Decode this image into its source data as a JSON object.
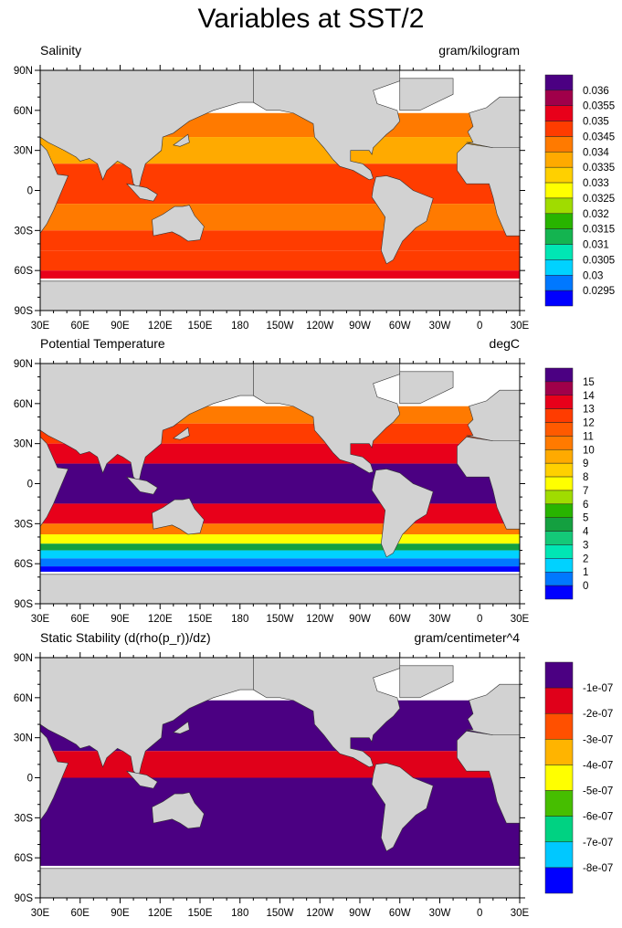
{
  "title": "Variables at SST/2",
  "lat_labels": [
    "90N",
    "60N",
    "30N",
    "0",
    "30S",
    "60S",
    "90S"
  ],
  "lon_labels": [
    "30E",
    "60E",
    "90E",
    "120E",
    "150E",
    "180",
    "150W",
    "120W",
    "90W",
    "60W",
    "30W",
    "0",
    "30E"
  ],
  "panels": [
    {
      "title": "Salinity",
      "units": "gram/kilogram",
      "colorbar": {
        "labels": [
          "0.036",
          "0.0355",
          "0.035",
          "0.0345",
          "0.034",
          "0.0335",
          "0.033",
          "0.0325",
          "0.032",
          "0.0315",
          "0.031",
          "0.0305",
          "0.03",
          "0.0295"
        ],
        "colors": [
          "#4b0082",
          "#a0004a",
          "#e8001a",
          "#ff3c00",
          "#ff7a00",
          "#ffaa00",
          "#ffd000",
          "#ffff00",
          "#a0dc00",
          "#28b400",
          "#14b450",
          "#00e6b4",
          "#00d2ff",
          "#0078ff",
          "#0000ff"
        ]
      }
    },
    {
      "title": "Potential Temperature",
      "units": "degC",
      "colorbar": {
        "labels": [
          "15",
          "14",
          "13",
          "12",
          "11",
          "10",
          "9",
          "8",
          "7",
          "6",
          "5",
          "4",
          "3",
          "2",
          "1",
          "0"
        ],
        "colors": [
          "#4b0082",
          "#a0004a",
          "#e8001a",
          "#ff3c00",
          "#ff5a00",
          "#ff7a00",
          "#ffaa00",
          "#ffd000",
          "#ffff00",
          "#a0dc00",
          "#28b400",
          "#14a040",
          "#14c878",
          "#00e6b4",
          "#00d2ff",
          "#0078ff",
          "#0000ff"
        ]
      }
    },
    {
      "title": "Static Stability (d(rho(p_r))/dz)",
      "units": "gram/centimeter^4",
      "colorbar": {
        "labels": [
          "-1e-07",
          "-2e-07",
          "-3e-07",
          "-4e-07",
          "-5e-07",
          "-6e-07",
          "-7e-07",
          "-8e-07"
        ],
        "colors": [
          "#4b0082",
          "#e0001a",
          "#ff5000",
          "#ffb400",
          "#ffff00",
          "#46be00",
          "#00d282",
          "#00c8ff",
          "#0000ff"
        ]
      }
    }
  ]
}
